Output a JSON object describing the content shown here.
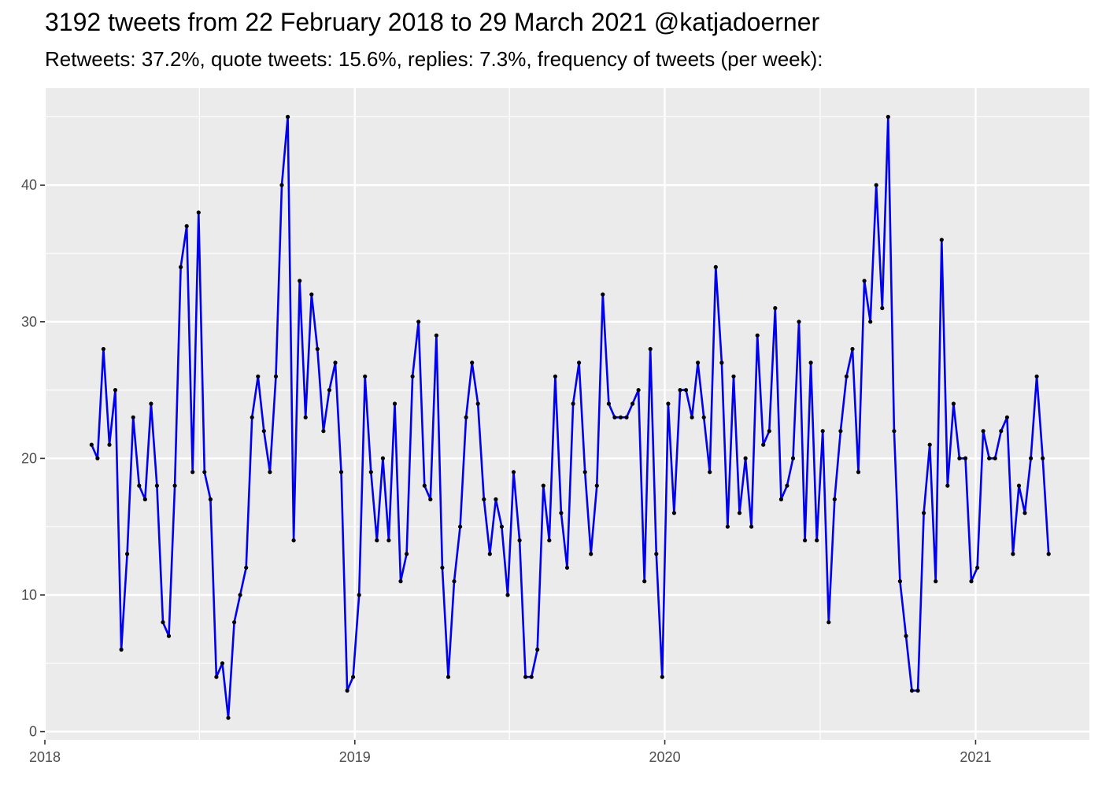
{
  "chart_data": {
    "type": "line",
    "title": "3192 tweets from 22 February 2018 to 29 March 2021 @katjadoerner",
    "subtitle": "Retweets: 37.2%, quote tweets: 15.6%, replies: 7.3%, frequency of tweets (per week):",
    "xlabel": "",
    "ylabel": "",
    "x_range": [
      "2018-01-01",
      "2021-05-15"
    ],
    "ylim": [
      -0.6,
      47.1
    ],
    "x_ticks": [
      "2018",
      "2019",
      "2020",
      "2021"
    ],
    "y_ticks": [
      "0",
      "10",
      "20",
      "30",
      "40"
    ],
    "grid": true,
    "line_color": "#0000ee",
    "point_color": "#000000",
    "panel_color": "#ebebeb",
    "series": [
      {
        "x": [
          "2018-02-25",
          "2018-03-04",
          "2018-03-11",
          "2018-03-18",
          "2018-03-25",
          "2018-04-01",
          "2018-04-08",
          "2018-04-15",
          "2018-04-22",
          "2018-04-29",
          "2018-05-06",
          "2018-05-13",
          "2018-05-20",
          "2018-05-27",
          "2018-06-03",
          "2018-06-10",
          "2018-06-17",
          "2018-06-24",
          "2018-07-01",
          "2018-07-08",
          "2018-07-15",
          "2018-07-22",
          "2018-07-29",
          "2018-08-05",
          "2018-08-12",
          "2018-08-19",
          "2018-08-26",
          "2018-09-02",
          "2018-09-09",
          "2018-09-16",
          "2018-09-23",
          "2018-09-30",
          "2018-10-07",
          "2018-10-14",
          "2018-10-21",
          "2018-10-28",
          "2018-11-04",
          "2018-11-11",
          "2018-11-18",
          "2018-11-25",
          "2018-12-02",
          "2018-12-09",
          "2018-12-16",
          "2018-12-23",
          "2018-12-30",
          "2019-01-06",
          "2019-01-13",
          "2019-01-20",
          "2019-01-27",
          "2019-02-03",
          "2019-02-10",
          "2019-02-17",
          "2019-02-24",
          "2019-03-03",
          "2019-03-10",
          "2019-03-17",
          "2019-03-24",
          "2019-03-31",
          "2019-04-07",
          "2019-04-14",
          "2019-04-21",
          "2019-04-28",
          "2019-05-05",
          "2019-05-12",
          "2019-05-19",
          "2019-05-26",
          "2019-06-02",
          "2019-06-09",
          "2019-06-16",
          "2019-06-23",
          "2019-06-30",
          "2019-07-07",
          "2019-07-14",
          "2019-07-21",
          "2019-07-28",
          "2019-08-04",
          "2019-08-11",
          "2019-08-18",
          "2019-08-25",
          "2019-09-01",
          "2019-09-08",
          "2019-09-15",
          "2019-09-22",
          "2019-09-29",
          "2019-10-06",
          "2019-10-13",
          "2019-10-20",
          "2019-10-27",
          "2019-11-03",
          "2019-11-10",
          "2019-11-17",
          "2019-11-24",
          "2019-12-01",
          "2019-12-08",
          "2019-12-15",
          "2019-12-22",
          "2019-12-29",
          "2020-01-05",
          "2020-01-12",
          "2020-01-19",
          "2020-01-26",
          "2020-02-02",
          "2020-02-09",
          "2020-02-16",
          "2020-02-23",
          "2020-03-01",
          "2020-03-08",
          "2020-03-15",
          "2020-03-22",
          "2020-03-29",
          "2020-04-05",
          "2020-04-12",
          "2020-04-19",
          "2020-04-26",
          "2020-05-03",
          "2020-05-10",
          "2020-05-17",
          "2020-05-24",
          "2020-05-31",
          "2020-06-07",
          "2020-06-14",
          "2020-06-21",
          "2020-06-28",
          "2020-07-05",
          "2020-07-12",
          "2020-07-19",
          "2020-07-26",
          "2020-08-02",
          "2020-08-09",
          "2020-08-16",
          "2020-08-23",
          "2020-08-30",
          "2020-09-06",
          "2020-09-13",
          "2020-09-20",
          "2020-09-27",
          "2020-10-04",
          "2020-10-11",
          "2020-10-18",
          "2020-10-25",
          "2020-11-01",
          "2020-11-08",
          "2020-11-15",
          "2020-11-22",
          "2020-11-29",
          "2020-12-06",
          "2020-12-13",
          "2020-12-20",
          "2020-12-27",
          "2021-01-03",
          "2021-01-10",
          "2021-01-17",
          "2021-01-24",
          "2021-01-31",
          "2021-02-07",
          "2021-02-14",
          "2021-02-21",
          "2021-02-28",
          "2021-03-07",
          "2021-03-14",
          "2021-03-21",
          "2021-03-28"
        ],
        "values": [
          21,
          20,
          28,
          21,
          25,
          6,
          13,
          23,
          18,
          17,
          24,
          18,
          8,
          7,
          18,
          34,
          37,
          19,
          38,
          19,
          17,
          4,
          5,
          1,
          8,
          10,
          12,
          23,
          26,
          22,
          19,
          26,
          40,
          45,
          14,
          33,
          23,
          32,
          28,
          22,
          25,
          27,
          19,
          3,
          4,
          10,
          26,
          19,
          14,
          20,
          14,
          24,
          11,
          13,
          26,
          30,
          18,
          17,
          29,
          12,
          4,
          11,
          15,
          23,
          27,
          24,
          17,
          13,
          17,
          15,
          10,
          19,
          14,
          4,
          4,
          6,
          18,
          14,
          26,
          16,
          12,
          24,
          27,
          19,
          13,
          18,
          32,
          24,
          23,
          23,
          23,
          24,
          25,
          11,
          28,
          13,
          4,
          24,
          16,
          25,
          25,
          23,
          27,
          23,
          19,
          34,
          27,
          15,
          26,
          16,
          20,
          15,
          29,
          21,
          22,
          31,
          17,
          18,
          20,
          30,
          14,
          27,
          14,
          22,
          8,
          17,
          22,
          26,
          28,
          19,
          33,
          30,
          40,
          31,
          45,
          22,
          11,
          7,
          3,
          3,
          16,
          21,
          11,
          36,
          18,
          24,
          20,
          20,
          11,
          12,
          22,
          20,
          20,
          22,
          23,
          13,
          18,
          16,
          20,
          26,
          20,
          13
        ]
      }
    ]
  }
}
